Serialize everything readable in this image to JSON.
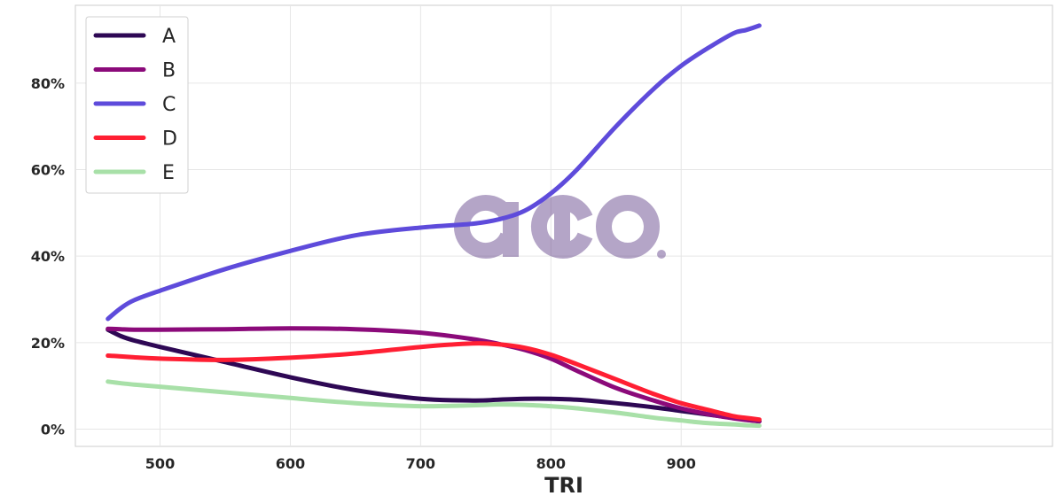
{
  "chart_data": {
    "type": "line",
    "xlabel": "TRI",
    "ylabel": "",
    "title": "",
    "xlim": [
      435,
      1185
    ],
    "ylim": [
      -4,
      98
    ],
    "x_ticks": [
      500,
      600,
      700,
      800,
      900
    ],
    "y_ticks": [
      0,
      20,
      40,
      60,
      80
    ],
    "y_tick_format": "percent",
    "grid": true,
    "legend_position": "top-left",
    "watermark": "aio.",
    "x": [
      460,
      470,
      480,
      500,
      550,
      600,
      650,
      700,
      740,
      760,
      780,
      800,
      820,
      850,
      880,
      900,
      920,
      940,
      950,
      960
    ],
    "series": [
      {
        "name": "A",
        "color": "#2e0854",
        "values": [
          23.0,
          21.5,
          20.5,
          19.0,
          15.5,
          12.0,
          9.0,
          7.0,
          6.6,
          6.8,
          7.0,
          7.0,
          6.8,
          6.0,
          5.0,
          4.2,
          3.4,
          2.6,
          2.2,
          1.8
        ]
      },
      {
        "name": "B",
        "color": "#8b0a7a",
        "values": [
          23.2,
          23.1,
          23.0,
          23.0,
          23.1,
          23.3,
          23.1,
          22.3,
          20.8,
          19.7,
          18.3,
          16.3,
          13.5,
          9.5,
          6.5,
          4.8,
          3.5,
          2.5,
          2.1,
          1.8
        ]
      },
      {
        "name": "C",
        "color": "#5e4bdb",
        "values": [
          25.5,
          28.0,
          29.8,
          32.0,
          37.0,
          41.2,
          44.8,
          46.6,
          47.5,
          48.5,
          50.5,
          54.5,
          60.0,
          70.0,
          79.0,
          84.0,
          88.0,
          91.5,
          92.3,
          93.3
        ]
      },
      {
        "name": "D",
        "color": "#ff1f33",
        "values": [
          17.0,
          16.8,
          16.6,
          16.3,
          16.0,
          16.5,
          17.5,
          19.0,
          19.8,
          19.6,
          18.8,
          17.2,
          15.0,
          11.5,
          8.0,
          6.0,
          4.5,
          3.0,
          2.6,
          2.2
        ]
      },
      {
        "name": "E",
        "color": "#a8e0a8",
        "values": [
          11.0,
          10.6,
          10.3,
          9.8,
          8.5,
          7.2,
          6.0,
          5.3,
          5.5,
          5.7,
          5.6,
          5.3,
          4.8,
          3.8,
          2.6,
          2.0,
          1.4,
          1.1,
          0.9,
          0.8
        ]
      }
    ]
  }
}
